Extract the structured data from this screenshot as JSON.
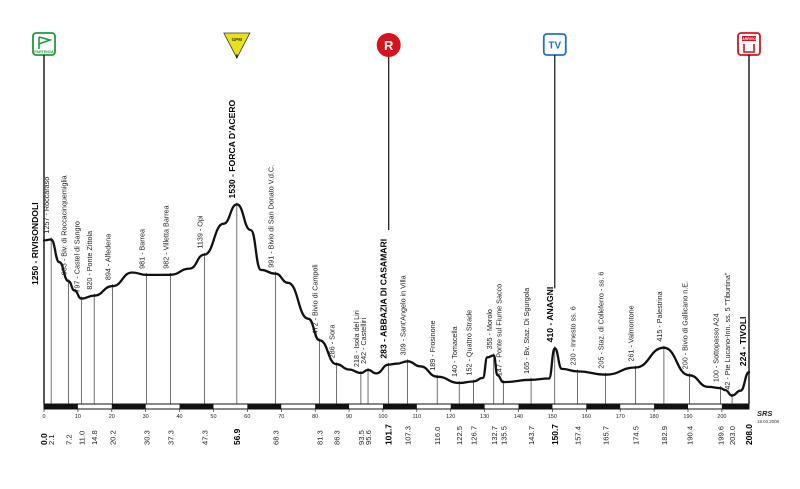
{
  "chart_data": {
    "type": "area",
    "title": "",
    "xlabel": "",
    "ylabel": "",
    "xlim": [
      0,
      208
    ],
    "ylim": [
      0,
      1700
    ],
    "axis_ticks": [
      "0",
      "10",
      "20",
      "30",
      "40",
      "50",
      "60",
      "70",
      "80",
      "90",
      "100",
      "110",
      "120",
      "130",
      "140",
      "150",
      "160",
      "170",
      "180",
      "190",
      "200"
    ],
    "profile": [
      [
        0,
        1250
      ],
      [
        2.1,
        1257
      ],
      [
        4.5,
        1080
      ],
      [
        7.2,
        933
      ],
      [
        9,
        860
      ],
      [
        11,
        797
      ],
      [
        14.8,
        820
      ],
      [
        20.2,
        894
      ],
      [
        26,
        1000
      ],
      [
        30.3,
        981
      ],
      [
        37.3,
        982
      ],
      [
        43,
        1030
      ],
      [
        47.3,
        1139
      ],
      [
        53,
        1380
      ],
      [
        56.9,
        1530
      ],
      [
        61,
        1330
      ],
      [
        64,
        1020
      ],
      [
        68.3,
        991
      ],
      [
        72,
        920
      ],
      [
        78,
        640
      ],
      [
        81.3,
        472
      ],
      [
        86.3,
        286
      ],
      [
        90,
        245
      ],
      [
        93.5,
        218
      ],
      [
        95.6,
        242
      ],
      [
        98,
        215
      ],
      [
        101.7,
        283
      ],
      [
        104,
        290
      ],
      [
        107.3,
        309
      ],
      [
        111,
        270
      ],
      [
        116,
        189
      ],
      [
        122.5,
        140
      ],
      [
        126.7,
        152
      ],
      [
        129.5,
        180
      ],
      [
        130.8,
        340
      ],
      [
        132.7,
        355
      ],
      [
        133.8,
        200
      ],
      [
        135.5,
        147
      ],
      [
        143.7,
        165
      ],
      [
        149,
        175
      ],
      [
        150.7,
        410
      ],
      [
        152.8,
        250
      ],
      [
        157.4,
        230
      ],
      [
        165.7,
        205
      ],
      [
        174.5,
        261
      ],
      [
        182.9,
        415
      ],
      [
        190.4,
        200
      ],
      [
        196,
        110
      ],
      [
        199.6,
        100
      ],
      [
        201,
        85
      ],
      [
        203,
        42
      ],
      [
        205.5,
        80
      ],
      [
        208,
        224
      ]
    ],
    "header": {
      "start_name": "RIVISONDOLI",
      "start_alt": "1250",
      "end_name": "TIVOLI",
      "end_alt": "224",
      "start_km": "0.0",
      "end_km": "208.0"
    },
    "points": [
      {
        "km": 2.1,
        "alt": 1257,
        "text": "1257 - Roccaraso",
        "km_label": "2.1",
        "bold": false
      },
      {
        "km": 7.2,
        "alt": 933,
        "text": "933 - Biv. di Roccacinquemiglia",
        "km_label": "7.2",
        "bold": false
      },
      {
        "km": 11.0,
        "alt": 797,
        "text": "797 - Castel di Sangro",
        "km_label": "11.0",
        "bold": false
      },
      {
        "km": 14.8,
        "alt": 820,
        "text": "820 - Ponte Zittola",
        "km_label": "14.8",
        "bold": false
      },
      {
        "km": 20.2,
        "alt": 894,
        "text": "894 - Alfedena",
        "km_label": "20.2",
        "bold": false
      },
      {
        "km": 30.3,
        "alt": 981,
        "text": "981 - Barrea",
        "km_label": "30.3",
        "bold": false
      },
      {
        "km": 37.3,
        "alt": 982,
        "text": "982 - Villetta Barrea",
        "km_label": "37.3",
        "bold": false
      },
      {
        "km": 47.3,
        "alt": 1139,
        "text": "1139 - Opi",
        "km_label": "47.3",
        "bold": false
      },
      {
        "km": 56.9,
        "alt": 1530,
        "text": "1530 - FORCA D'ACERO",
        "km_label": "56.9",
        "bold": true
      },
      {
        "km": 68.3,
        "alt": 991,
        "text": "991 - Bivio di San Donato V.d.C.",
        "km_label": "68.3",
        "bold": false
      },
      {
        "km": 81.3,
        "alt": 472,
        "text": "472 - Bivio di Campoli",
        "km_label": "81.3",
        "bold": false
      },
      {
        "km": 86.3,
        "alt": 286,
        "text": "286 - Sora",
        "km_label": "86.3",
        "bold": false
      },
      {
        "km": 93.5,
        "alt": 218,
        "text": "218 - Isola del Liri",
        "km_label": "93.5",
        "bold": false
      },
      {
        "km": 95.6,
        "alt": 242,
        "text": "242 - Castelliri",
        "km_label": "95.6",
        "bold": false
      },
      {
        "km": 101.7,
        "alt": 283,
        "text": "283 - ABBAZIA DI CASAMARI",
        "km_label": "101.7",
        "bold": true
      },
      {
        "km": 107.3,
        "alt": 309,
        "text": "309 - Sant'Angelo in Villa",
        "km_label": "107.3",
        "bold": false
      },
      {
        "km": 116.0,
        "alt": 189,
        "text": "189 - Frosinone",
        "km_label": "116.0",
        "bold": false
      },
      {
        "km": 122.5,
        "alt": 140,
        "text": "140 - Tomacella",
        "km_label": "122.5",
        "bold": false
      },
      {
        "km": 126.7,
        "alt": 152,
        "text": "152 - Quattro Strade",
        "km_label": "126.7",
        "bold": false
      },
      {
        "km": 132.7,
        "alt": 355,
        "text": "355 - Morolo",
        "km_label": "132.7",
        "bold": false
      },
      {
        "km": 135.5,
        "alt": 147,
        "text": "147 - Ponte sul Fiume Sacco",
        "km_label": "135.5",
        "bold": false
      },
      {
        "km": 143.7,
        "alt": 165,
        "text": "165 - Bv. Staz. Di Sgurgola",
        "km_label": "143.7",
        "bold": false
      },
      {
        "km": 150.7,
        "alt": 410,
        "text": "410 - ANAGNI",
        "km_label": "150.7",
        "bold": true
      },
      {
        "km": 157.4,
        "alt": 230,
        "text": "230 - Innesto ss. 6",
        "km_label": "157.4",
        "bold": false
      },
      {
        "km": 165.7,
        "alt": 205,
        "text": "205 - Staz. di Colleferro - ss. 6",
        "km_label": "165.7",
        "bold": false
      },
      {
        "km": 174.5,
        "alt": 261,
        "text": "261 - Valmontone",
        "km_label": "174.5",
        "bold": false
      },
      {
        "km": 182.9,
        "alt": 415,
        "text": "415 - Palestrina",
        "km_label": "182.9",
        "bold": false
      },
      {
        "km": 190.4,
        "alt": 200,
        "text": "200 - Bivio di Gallicano n.E.",
        "km_label": "190.4",
        "bold": false
      },
      {
        "km": 199.6,
        "alt": 100,
        "text": "100 - Sottopasso A24",
        "km_label": "199.6",
        "bold": false
      },
      {
        "km": 203.0,
        "alt": 42,
        "text": "42 - Pte Lucano-Inn. ss. 5 \"Tiburtina\"",
        "km_label": "203.0",
        "bold": false
      }
    ],
    "markers": [
      {
        "name": "partenza",
        "km": 0,
        "symbol": "start-flag-icon",
        "text": "PARTENZA",
        "color": "#1e9a3c"
      },
      {
        "name": "gpm",
        "km": 56.9,
        "symbol": "gpm-triangle-icon",
        "text": "GPM",
        "color": "#e8e018"
      },
      {
        "name": "rifornimento",
        "km": 101.7,
        "symbol": "r-circle-icon",
        "text": "R",
        "color": "#d8121c"
      },
      {
        "name": "tv",
        "km": 150.7,
        "symbol": "tv-icon",
        "text": "TV",
        "color": "#1f73d0"
      },
      {
        "name": "arrivo",
        "km": 208.0,
        "symbol": "finish-flag-icon",
        "text": "ARRIVO",
        "color": "#d8121c"
      }
    ],
    "brand": {
      "logo": "SRS",
      "date": "18.03.2008"
    },
    "grid": false
  }
}
